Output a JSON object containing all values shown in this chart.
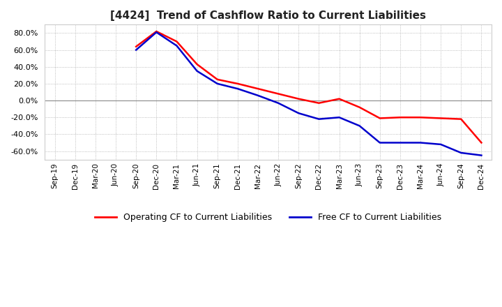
{
  "title": "[4424]  Trend of Cashflow Ratio to Current Liabilities",
  "ylim": [
    -70,
    90
  ],
  "yticks": [
    -60,
    -40,
    -20,
    0,
    20,
    40,
    60,
    80
  ],
  "background_color": "#ffffff",
  "plot_background_color": "#ffffff",
  "grid_color": "#aaaaaa",
  "legend": [
    "Operating CF to Current Liabilities",
    "Free CF to Current Liabilities"
  ],
  "legend_colors": [
    "#ff0000",
    "#0000cc"
  ],
  "x_labels": [
    "Sep-19",
    "Dec-19",
    "Mar-20",
    "Jun-20",
    "Sep-20",
    "Dec-20",
    "Mar-21",
    "Jun-21",
    "Sep-21",
    "Dec-21",
    "Mar-22",
    "Jun-22",
    "Sep-22",
    "Dec-22",
    "Mar-23",
    "Jun-23",
    "Sep-23",
    "Dec-23",
    "Mar-24",
    "Jun-24",
    "Sep-24",
    "Dec-24"
  ],
  "operating_cf": [
    null,
    null,
    null,
    null,
    64,
    82,
    70,
    43,
    25,
    20,
    14,
    8,
    2,
    -3,
    2,
    -8,
    -21,
    -20,
    -20,
    -21,
    -22,
    -50
  ],
  "free_cf": [
    null,
    null,
    null,
    null,
    60,
    81,
    65,
    35,
    20,
    14,
    6,
    -3,
    -15,
    -22,
    -20,
    -30,
    -50,
    -50,
    -50,
    -52,
    -62,
    -65
  ]
}
